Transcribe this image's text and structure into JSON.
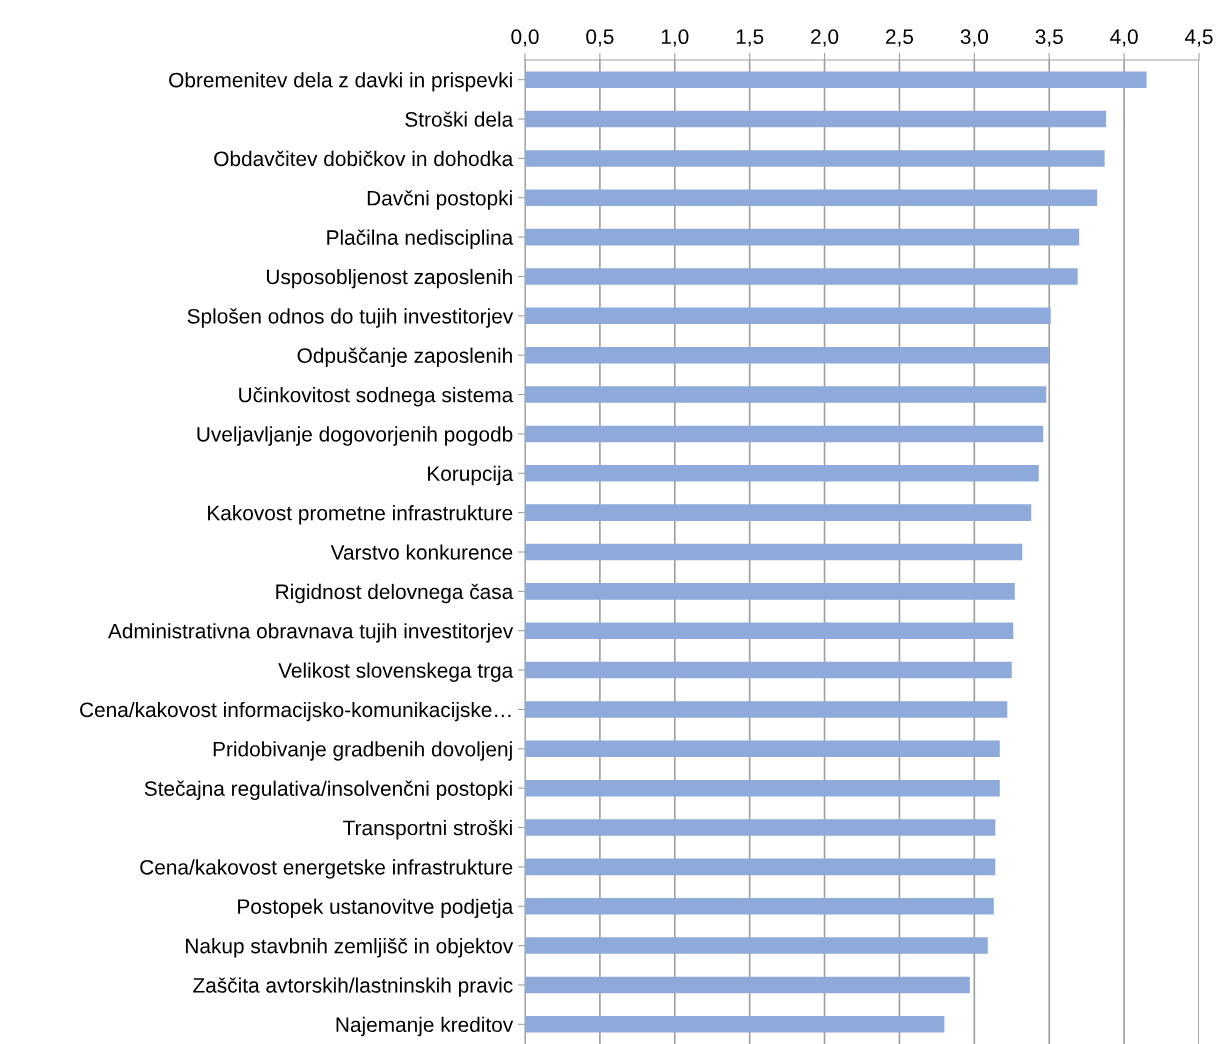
{
  "chart_data": {
    "type": "bar",
    "orientation": "horizontal",
    "categories": [
      "Obremenitev dela z davki in prispevki",
      "Stroški dela",
      "Obdavčitev dobičkov in dohodka",
      "Davčni postopki",
      "Plačilna nedisciplina",
      "Usposobljenost zaposlenih",
      "Splošen odnos do tujih investitorjev",
      "Odpuščanje zaposlenih",
      "Učinkovitost sodnega sistema",
      "Uveljavljanje dogovorjenih pogodb",
      "Korupcija",
      "Kakovost prometne infrastrukture",
      "Varstvo konkurence",
      "Rigidnost delovnega časa",
      "Administrativna obravnava tujih investitorjev",
      "Velikost slovenskega trga",
      "Cena/kakovost informacijsko-komunikacijske…",
      "Pridobivanje gradbenih dovoljenj",
      "Stečajna regulativa/insolvenčni postopki",
      "Transportni stroški",
      "Cena/kakovost energetske infrastrukture",
      "Postopek ustanovitve podjetja",
      "Nakup stavbnih zemljišč in objektov",
      "Zaščita avtorskih/lastninskih pravic",
      "Najemanje kreditov"
    ],
    "values": [
      4.15,
      3.88,
      3.87,
      3.82,
      3.7,
      3.69,
      3.51,
      3.5,
      3.48,
      3.46,
      3.43,
      3.38,
      3.32,
      3.27,
      3.26,
      3.25,
      3.22,
      3.17,
      3.17,
      3.14,
      3.14,
      3.13,
      3.09,
      2.97,
      2.8
    ],
    "color": "#8eaadb",
    "xlim": [
      0,
      4.5
    ],
    "xticks": [
      {
        "value": 0,
        "label": "0,0"
      },
      {
        "value": 0.5,
        "label": "0,5"
      },
      {
        "value": 1,
        "label": "1,0"
      },
      {
        "value": 1.5,
        "label": "1,5"
      },
      {
        "value": 2,
        "label": "2,0"
      },
      {
        "value": 2.5,
        "label": "2,5"
      },
      {
        "value": 3,
        "label": "3,0"
      },
      {
        "value": 3.5,
        "label": "3,5"
      },
      {
        "value": 4,
        "label": "4,0"
      },
      {
        "value": 4.5,
        "label": "4,5"
      }
    ],
    "grid": "x",
    "legend": false
  }
}
